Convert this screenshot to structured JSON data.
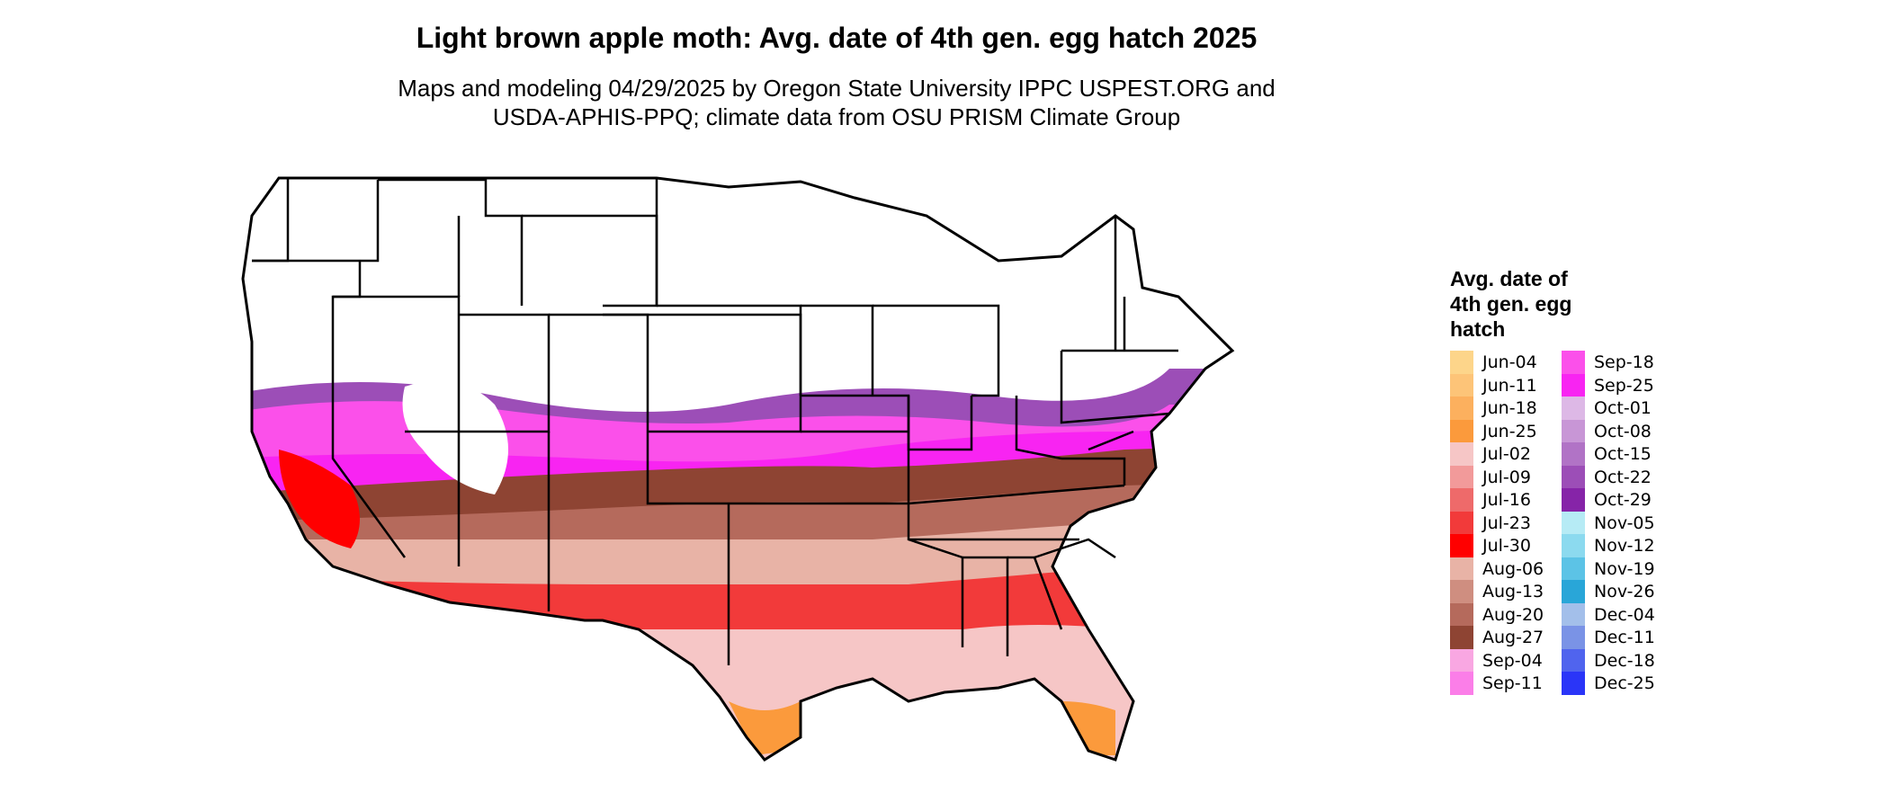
{
  "header": {
    "title": "Light brown apple moth: Avg. date of 4th gen. egg hatch 2025",
    "subtitle_line1": "Maps and modeling 04/29/2025 by Oregon State University IPPC USPEST.ORG and",
    "subtitle_line2": "USDA-APHIS-PPQ; climate data from OSU PRISM Climate Group"
  },
  "legend": {
    "title_line1": "Avg. date of",
    "title_line2": "4th gen. egg",
    "title_line3": "hatch",
    "items": [
      {
        "label": "Jun-04",
        "color": "#fdd58a"
      },
      {
        "label": "Jun-11",
        "color": "#fdc478"
      },
      {
        "label": "Jun-18",
        "color": "#fcb05e"
      },
      {
        "label": "Jun-25",
        "color": "#fb9a3c"
      },
      {
        "label": "Jul-02",
        "color": "#f6c6c6"
      },
      {
        "label": "Jul-09",
        "color": "#f29a9a"
      },
      {
        "label": "Jul-16",
        "color": "#ee6a6a"
      },
      {
        "label": "Jul-23",
        "color": "#f23a3a"
      },
      {
        "label": "Jul-30",
        "color": "#ff0000"
      },
      {
        "label": "Aug-06",
        "color": "#e8b3a6"
      },
      {
        "label": "Aug-13",
        "color": "#cf8e80"
      },
      {
        "label": "Aug-20",
        "color": "#b56a5c"
      },
      {
        "label": "Aug-27",
        "color": "#8e4433"
      },
      {
        "label": "Sep-04",
        "color": "#f9a7e2"
      },
      {
        "label": "Sep-11",
        "color": "#fb7ee8"
      },
      {
        "label": "Sep-18",
        "color": "#fb50ea"
      },
      {
        "label": "Sep-25",
        "color": "#f824f2"
      },
      {
        "label": "Oct-01",
        "color": "#ddb8e6"
      },
      {
        "label": "Oct-08",
        "color": "#c896d6"
      },
      {
        "label": "Oct-15",
        "color": "#b173c6"
      },
      {
        "label": "Oct-22",
        "color": "#9c4eb7"
      },
      {
        "label": "Oct-29",
        "color": "#8624a8"
      },
      {
        "label": "Nov-05",
        "color": "#b6ebf5"
      },
      {
        "label": "Nov-12",
        "color": "#8cdaef"
      },
      {
        "label": "Nov-19",
        "color": "#5cc3e6"
      },
      {
        "label": "Nov-26",
        "color": "#29a6d8"
      },
      {
        "label": "Dec-04",
        "color": "#a3bfea"
      },
      {
        "label": "Dec-11",
        "color": "#7a93e6"
      },
      {
        "label": "Dec-18",
        "color": "#5064ee"
      },
      {
        "label": "Dec-25",
        "color": "#2a35f8"
      }
    ]
  },
  "map": {
    "outline_color": "#000000",
    "no_data_color": "#ffffff"
  }
}
